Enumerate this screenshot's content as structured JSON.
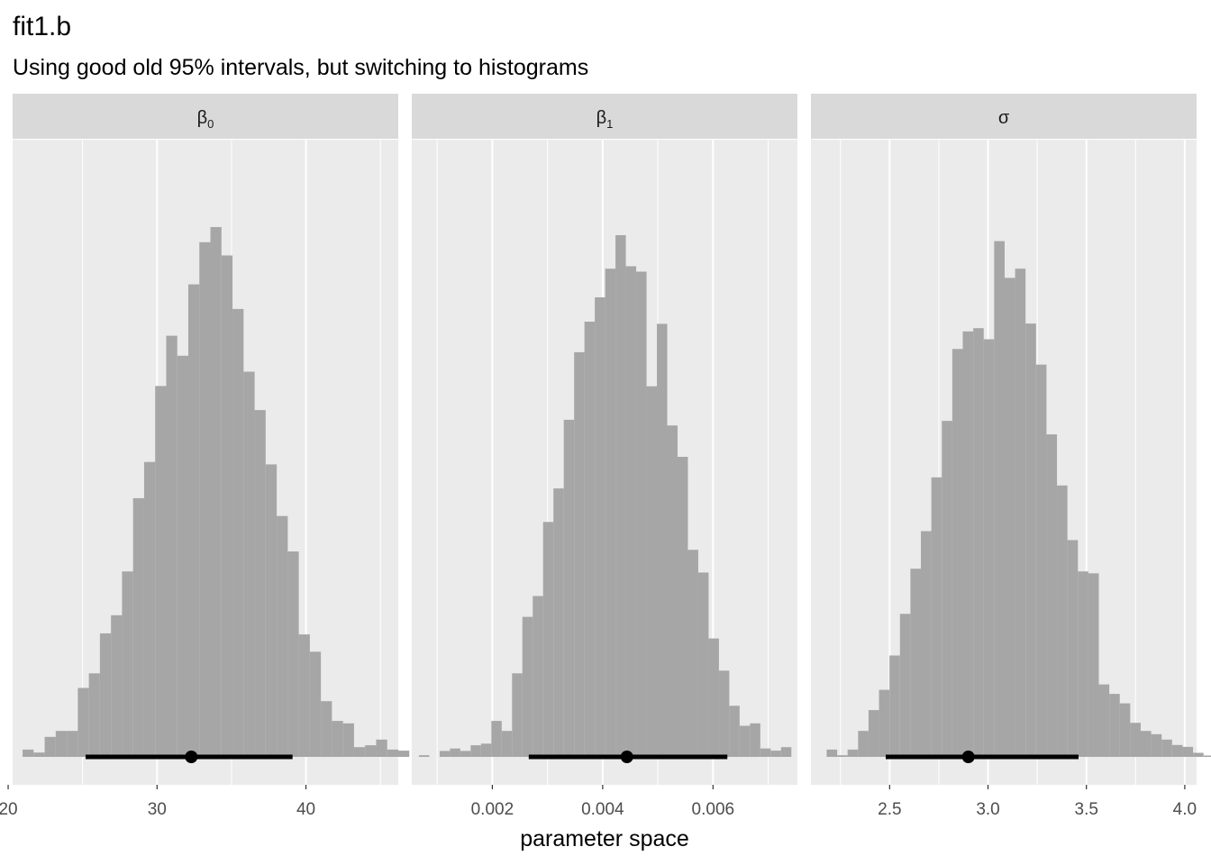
{
  "title": "fit1.b",
  "subtitle": "Using good old 95% intervals, but switching to histograms",
  "chart_data": {
    "type": "histogram",
    "title": "fit1.b",
    "subtitle": "Using good old 95% intervals, but switching to histograms",
    "xlabel": "parameter space",
    "ylabel": "",
    "grid": true,
    "facets": [
      {
        "strip_symbol": "β",
        "strip_subscript": "0",
        "xlim": [
          20.3,
          46.2
        ],
        "x_ticks": [
          20,
          30,
          40
        ],
        "x_tick_labels": [
          "20",
          "30",
          "40"
        ],
        "bins": {
          "start": 20.97,
          "width": 0.742,
          "counts": [
            2.7,
            1.6,
            7.4,
            9.6,
            9.6,
            25.5,
            30.9,
            45.7,
            52.4,
            68.6,
            95.7,
            109.1,
            137.2,
            155.8,
            148.4,
            174.8,
            190.4,
            196.0,
            185.5,
            165.7,
            142.5,
            128.3,
            108.2,
            89.1,
            76.0,
            45.3,
            38.9,
            20.6,
            13.3,
            12.4,
            3.6,
            4.3,
            6.4,
            2.7,
            2.3,
            0,
            0.6
          ]
        },
        "point_estimate": 32.3,
        "interval_95": [
          25.2,
          39.1
        ]
      },
      {
        "strip_symbol": "β",
        "strip_subscript": "1",
        "xlim": [
          0.00054,
          0.00753
        ],
        "x_ticks": [
          0.002,
          0.004,
          0.006
        ],
        "x_tick_labels": [
          "0.002",
          "0.004",
          "0.006"
        ],
        "bins": {
          "start": 0.00067,
          "width": 0.0001875,
          "counts": [
            0.6,
            0,
            2.2,
            3.1,
            2.2,
            4.3,
            4.9,
            13.3,
            9.6,
            30.9,
            51.8,
            59.5,
            86.9,
            99.3,
            124.7,
            149.7,
            161.0,
            170.0,
            180.6,
            193.0,
            181.5,
            179.5,
            137.1,
            160.2,
            122.6,
            111.0,
            76.6,
            68.2,
            43.8,
            31.9,
            18.9,
            11.5,
            12.4,
            3.1,
            2.3,
            3.6
          ]
        },
        "point_estimate": 0.00444,
        "interval_95": [
          0.00266,
          0.00626
        ]
      },
      {
        "strip_symbol": "σ",
        "strip_subscript": "",
        "xlim": [
          2.1,
          4.06
        ],
        "x_ticks": [
          2.5,
          3.0,
          3.5,
          4.0
        ],
        "x_tick_labels": [
          "2.5",
          "3.0",
          "3.5",
          "4.0"
        ],
        "bins": {
          "start": 2.18,
          "width": 0.0532,
          "counts": [
            2.7,
            0.6,
            2.7,
            9.6,
            17.3,
            24.8,
            37.5,
            52.9,
            69.6,
            83.5,
            103.4,
            124.3,
            150.9,
            157.4,
            158.6,
            154.5,
            190.8,
            177.2,
            180.6,
            160.3,
            145.1,
            119.3,
            100.4,
            80.2,
            68.6,
            67.9,
            26.8,
            23.3,
            19.8,
            12.6,
            9.6,
            8.4,
            6.4,
            4.4,
            3.7,
            1.5,
            0.5
          ]
        },
        "point_estimate": 2.9,
        "interval_95": [
          2.48,
          3.46
        ]
      }
    ]
  }
}
